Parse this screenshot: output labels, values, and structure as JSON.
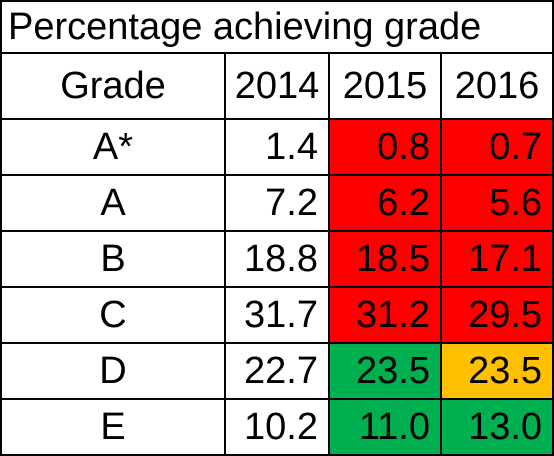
{
  "title": "Percentage achieving grade",
  "headers": [
    "Grade",
    "2014",
    "2015",
    "2016"
  ],
  "colors": {
    "red": "#ff0000",
    "green": "#00b050",
    "amber": "#ffc000",
    "white": "#ffffff"
  },
  "rows": [
    {
      "grade": "A*",
      "y2014": "1.4",
      "y2015": "0.8",
      "y2016": "0.7",
      "c2015": "red",
      "c2016": "red"
    },
    {
      "grade": "A",
      "y2014": "7.2",
      "y2015": "6.2",
      "y2016": "5.6",
      "c2015": "red",
      "c2016": "red"
    },
    {
      "grade": "B",
      "y2014": "18.8",
      "y2015": "18.5",
      "y2016": "17.1",
      "c2015": "red",
      "c2016": "red"
    },
    {
      "grade": "C",
      "y2014": "31.7",
      "y2015": "31.2",
      "y2016": "29.5",
      "c2015": "red",
      "c2016": "red"
    },
    {
      "grade": "D",
      "y2014": "22.7",
      "y2015": "23.5",
      "y2016": "23.5",
      "c2015": "green",
      "c2016": "amber"
    },
    {
      "grade": "E",
      "y2014": "10.2",
      "y2015": "11.0",
      "y2016": "13.0",
      "c2015": "green",
      "c2016": "green"
    }
  ]
}
